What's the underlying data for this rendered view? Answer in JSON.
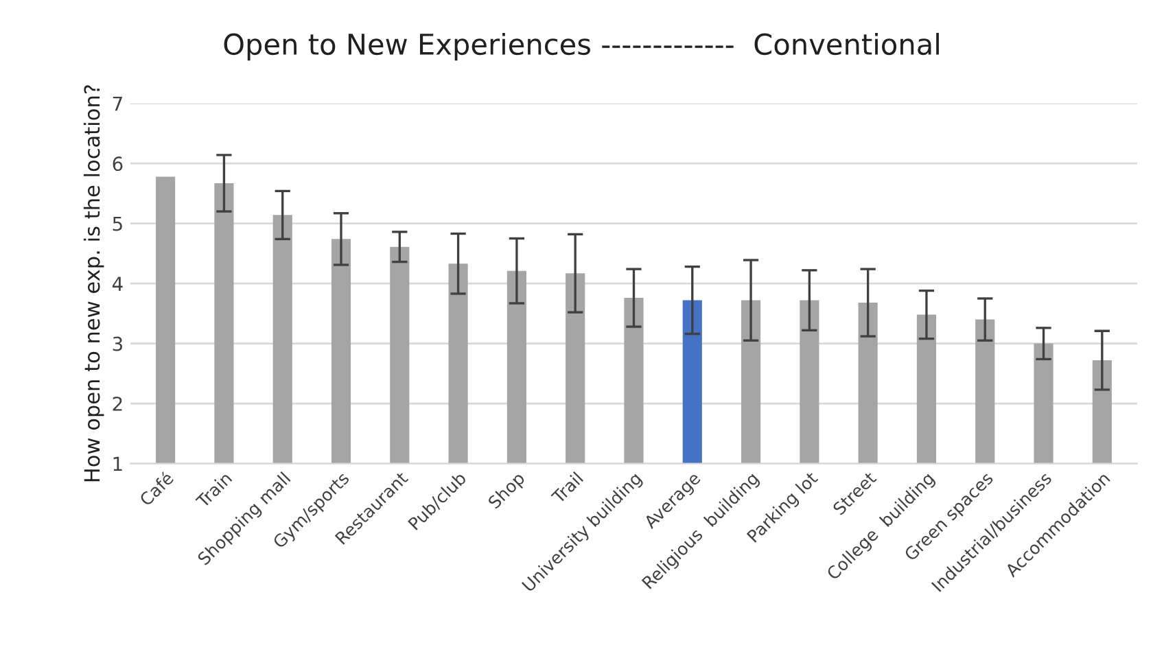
{
  "chart_data": {
    "type": "bar",
    "title": "Open to New Experiences -------------  Conventional",
    "ylabel": "How open to new exp. is the location?",
    "categories": [
      "Café",
      "Train",
      "Shopping mall",
      "Gym/sports",
      "Restaurant",
      "Pub/club",
      "Shop",
      "Trail",
      "University building",
      "Average",
      "Religious  building",
      "Parking lot",
      "Street",
      "College  building",
      "Green spaces",
      "Industrial/business",
      "Accommodation"
    ],
    "values": [
      5.78,
      5.67,
      5.14,
      4.74,
      4.61,
      4.33,
      4.21,
      4.17,
      3.76,
      3.72,
      3.72,
      3.72,
      3.68,
      3.48,
      3.4,
      3.0,
      2.72
    ],
    "errors": [
      null,
      0.47,
      0.4,
      0.43,
      0.25,
      0.5,
      0.54,
      0.65,
      0.48,
      0.56,
      0.67,
      0.5,
      0.56,
      0.4,
      0.35,
      0.26,
      0.49
    ],
    "colors": [
      "#a5a5a5",
      "#a5a5a5",
      "#a5a5a5",
      "#a5a5a5",
      "#a5a5a5",
      "#a5a5a5",
      "#a5a5a5",
      "#a5a5a5",
      "#a5a5a5",
      "#4472c4",
      "#a5a5a5",
      "#a5a5a5",
      "#a5a5a5",
      "#a5a5a5",
      "#a5a5a5",
      "#a5a5a5",
      "#a5a5a5"
    ],
    "ylim": [
      1,
      7
    ],
    "yticks": [
      1,
      2,
      3,
      4,
      5,
      6,
      7
    ],
    "grid": "y",
    "legend": false
  }
}
